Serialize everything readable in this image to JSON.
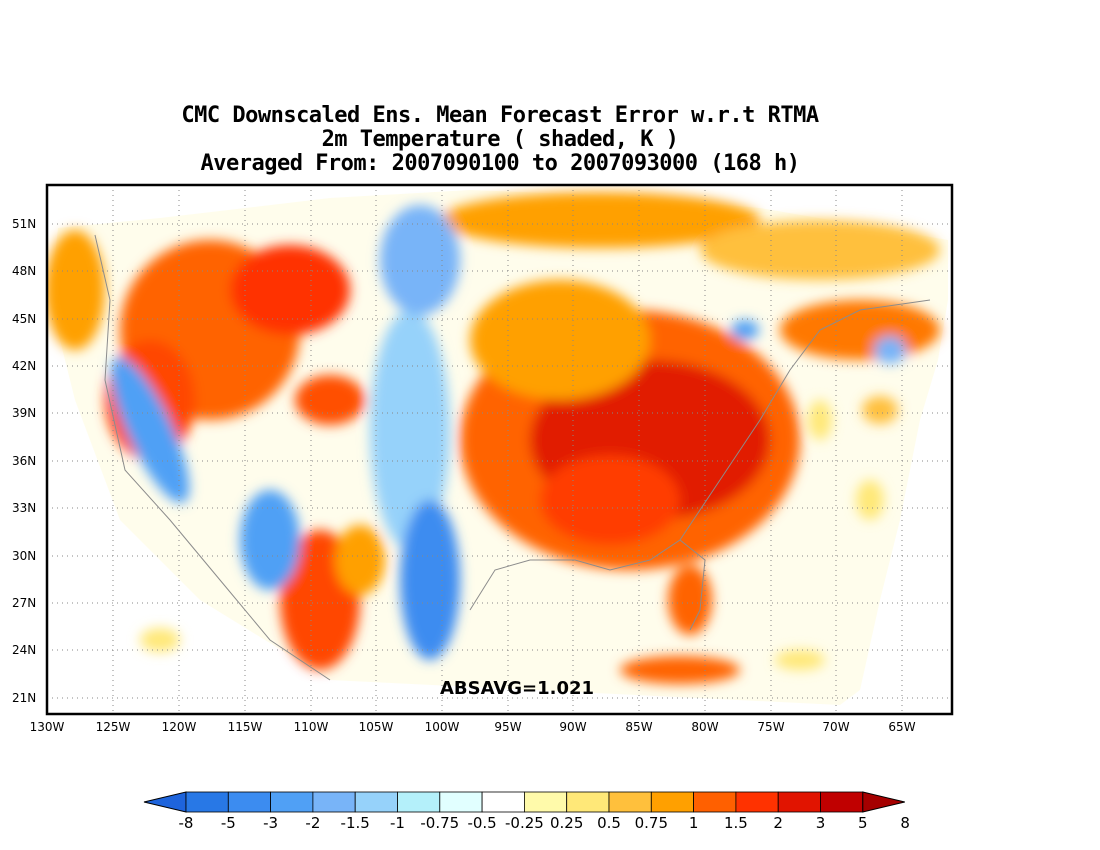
{
  "title": {
    "line1": "CMC Downscaled Ens. Mean Forecast Error w.r.t RTMA",
    "line2": "2m Temperature ( shaded, K )",
    "line3": "Averaged From: 2007090100 to 2007093000 (168 h)"
  },
  "annotation": "ABSAVG=1.021",
  "lat_ticks": [
    "51N",
    "48N",
    "45N",
    "42N",
    "39N",
    "36N",
    "33N",
    "30N",
    "27N",
    "24N",
    "21N"
  ],
  "lon_ticks": [
    "130W",
    "125W",
    "120W",
    "115W",
    "110W",
    "105W",
    "100W",
    "95W",
    "90W",
    "85W",
    "80W",
    "75W",
    "70W",
    "65W"
  ],
  "colorbar": {
    "labels": [
      "-8",
      "-5",
      "-3",
      "-2",
      "-1.5",
      "-1",
      "-0.75",
      "-0.5",
      "-0.25",
      "0.25",
      "0.5",
      "0.75",
      "1",
      "1.5",
      "2",
      "3",
      "5",
      "8"
    ],
    "colors": [
      "#1e64dc",
      "#2878e6",
      "#3c8cf0",
      "#50a0f5",
      "#78b4f8",
      "#96d2fa",
      "#b4f0fa",
      "#e1ffff",
      "#ffffff",
      "#fffaaa",
      "#ffe878",
      "#ffc03c",
      "#ffa000",
      "#ff6000",
      "#ff3200",
      "#e11400",
      "#c00000",
      "#a50000"
    ]
  },
  "colors": {
    "land_outline": "#999999",
    "grid": "#888888"
  }
}
